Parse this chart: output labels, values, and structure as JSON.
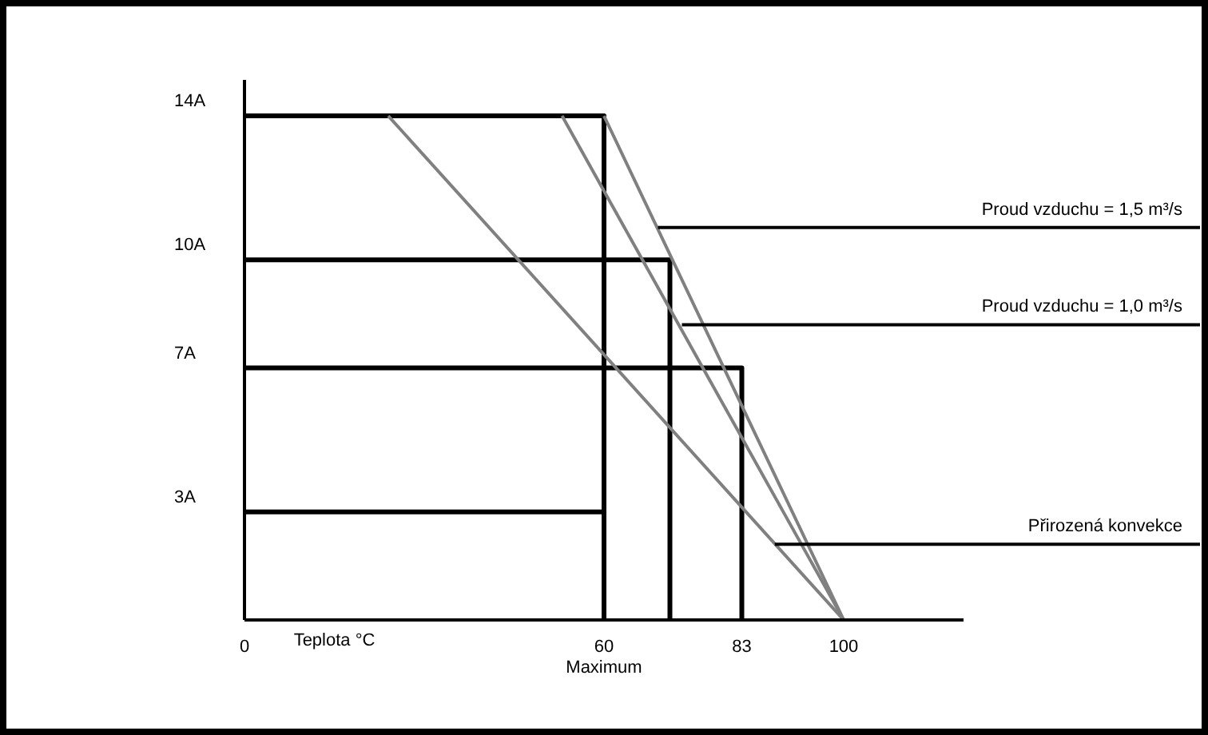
{
  "chart_data": {
    "type": "line",
    "xlabel": "Teplota °C",
    "xlim": [
      0,
      120
    ],
    "ylim": [
      0,
      15
    ],
    "xticks": [
      0,
      {
        "value": 60,
        "label": "60\nMaximum"
      },
      83,
      100
    ],
    "yticks": [
      {
        "value": 3,
        "label": "3A"
      },
      {
        "value": 7,
        "label": "7A"
      },
      {
        "value": 10,
        "label": "10A"
      },
      {
        "value": 14,
        "label": "14A"
      }
    ],
    "grid": false,
    "legend": false,
    "marker": "none",
    "line_style": "solid",
    "series": [
      {
        "color": "#000000",
        "x": [
          0,
          60,
          60
        ],
        "values": [
          14,
          14,
          0
        ]
      },
      {
        "color": "#000000",
        "x": [
          0,
          71,
          71
        ],
        "values": [
          10,
          10,
          0
        ]
      },
      {
        "color": "#000000",
        "x": [
          0,
          83,
          83
        ],
        "values": [
          7,
          7,
          0
        ]
      },
      {
        "color": "#000000",
        "x": [
          0,
          60
        ],
        "values": [
          3,
          3
        ]
      },
      {
        "color": "#808080",
        "x": [
          24,
          100
        ],
        "values": [
          14,
          0
        ]
      },
      {
        "color": "#808080",
        "x": [
          53,
          100
        ],
        "values": [
          14,
          0
        ]
      },
      {
        "color": "#808080",
        "x": [
          60,
          100
        ],
        "values": [
          14,
          0
        ]
      }
    ],
    "annotations": [
      {
        "text": "Proud vzduchu = 1,5 m³/s",
        "x": 69,
        "y": 10.9
      },
      {
        "text": "Proud vzduchu = 1,0 m³/s",
        "x": 73,
        "y": 8.2
      },
      {
        "text": "Přirozená konvekce",
        "x": 88.5,
        "y": 2.1
      }
    ]
  }
}
